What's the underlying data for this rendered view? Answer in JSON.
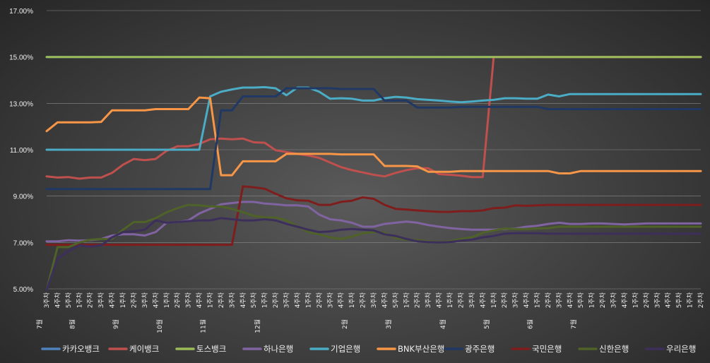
{
  "chart_data": {
    "type": "line",
    "title": "",
    "xlabel": "",
    "ylabel": "",
    "ylim": [
      5,
      17
    ],
    "yticks": [
      "5.00%",
      "7.00%",
      "9.00%",
      "11.00%",
      "13.00%",
      "15.00%",
      "17.00%"
    ],
    "grid": "horizontal",
    "legend_position": "bottom",
    "x": [
      "3주차",
      "4주차",
      "5주차",
      "1주차",
      "2주차",
      "3주차",
      "4주차",
      "1주차",
      "2주차",
      "3주차",
      "4주차",
      "1주차",
      "2주차",
      "3주차",
      "4주차",
      "1주차",
      "2주차",
      "3주차",
      "4주차",
      "5주차",
      "1주차",
      "2주차",
      "3주차",
      "4주차",
      "1주차",
      "2주차",
      "3주차",
      "4주차",
      "1주차",
      "2주차",
      "3주차",
      "4주차",
      "5주차",
      "1주차",
      "2주차",
      "3주차",
      "4주차",
      "1주차",
      "2주차",
      "3주차",
      "4주차",
      "1주차",
      "2주차",
      "3주차",
      "4주차",
      "1주차",
      "2주차",
      "3주차",
      "4주차",
      "5주차",
      "1주차",
      "2주차",
      "3주차",
      "4주차",
      "1주차",
      "2주차",
      "3주차",
      "4주차",
      "5주차",
      "1주차",
      "2주차"
    ],
    "month_labels": [
      {
        "index": 0,
        "label": "7월"
      },
      {
        "index": 3,
        "label": "8월"
      },
      {
        "index": 7,
        "label": "9월"
      },
      {
        "index": 11,
        "label": "10월"
      },
      {
        "index": 15,
        "label": "11월"
      },
      {
        "index": 20,
        "label": "12월"
      },
      {
        "index": 28,
        "label": "2월"
      },
      {
        "index": 32,
        "label": "3월"
      },
      {
        "index": 37,
        "label": "4월"
      },
      {
        "index": 41,
        "label": "5월"
      },
      {
        "index": 45,
        "label": "6월"
      },
      {
        "index": 49,
        "label": "7월"
      }
    ],
    "series": [
      {
        "name": "카카오뱅크",
        "color": "#4f81bd",
        "values": [
          15.0,
          15.0,
          15.0,
          15.0,
          15.0,
          15.0,
          15.0,
          15.0,
          15.0,
          15.0,
          15.0,
          15.0,
          15.0,
          15.0,
          15.0,
          15.0,
          15.0,
          15.0,
          15.0,
          15.0,
          15.0,
          15.0,
          15.0,
          15.0,
          15.0,
          15.0,
          15.0,
          15.0,
          15.0,
          15.0,
          15.0,
          15.0,
          15.0,
          15.0,
          15.0,
          15.0,
          15.0,
          15.0,
          15.0,
          15.0,
          15.0,
          15.0,
          15.0,
          15.0,
          15.0,
          15.0,
          15.0,
          15.0,
          15.0,
          15.0,
          15.0,
          15.0,
          15.0,
          15.0,
          15.0,
          15.0,
          15.0,
          15.0,
          15.0,
          15.0,
          15.0
        ]
      },
      {
        "name": "케이뱅크",
        "color": "#c0504d",
        "values": [
          9.85,
          9.8,
          9.82,
          9.75,
          9.8,
          9.8,
          10.0,
          10.35,
          10.6,
          10.55,
          10.6,
          10.95,
          11.15,
          11.15,
          11.25,
          11.45,
          11.48,
          11.45,
          11.48,
          11.32,
          11.3,
          10.98,
          10.9,
          10.82,
          10.75,
          10.65,
          10.45,
          10.25,
          10.12,
          10.02,
          9.92,
          9.85,
          10.0,
          10.12,
          10.2,
          10.2,
          9.95,
          9.92,
          9.88,
          9.82,
          9.82,
          15.0,
          15.0,
          15.0,
          15.0,
          15.0,
          15.0,
          15.0,
          15.0,
          15.0,
          15.0,
          15.0,
          15.0,
          15.0,
          15.0,
          15.0,
          15.0,
          15.0,
          15.0,
          15.0,
          15.0
        ]
      },
      {
        "name": "토스뱅크",
        "color": "#9bbb59",
        "values": [
          15.0,
          15.0,
          15.0,
          15.0,
          15.0,
          15.0,
          15.0,
          15.0,
          15.0,
          15.0,
          15.0,
          15.0,
          15.0,
          15.0,
          15.0,
          15.0,
          15.0,
          15.0,
          15.0,
          15.0,
          15.0,
          15.0,
          15.0,
          15.0,
          15.0,
          15.0,
          15.0,
          15.0,
          15.0,
          15.0,
          15.0,
          15.0,
          15.0,
          15.0,
          15.0,
          15.0,
          15.0,
          15.0,
          15.0,
          15.0,
          15.0,
          15.0,
          15.0,
          15.0,
          15.0,
          15.0,
          15.0,
          15.0,
          15.0,
          15.0,
          15.0,
          15.0,
          15.0,
          15.0,
          15.0,
          15.0,
          15.0,
          15.0,
          15.0,
          15.0,
          15.0
        ]
      },
      {
        "name": "하나은행",
        "color": "#8064a2",
        "values": [
          7.05,
          7.05,
          7.1,
          7.08,
          7.1,
          7.15,
          7.3,
          7.35,
          7.35,
          7.3,
          7.45,
          7.85,
          7.88,
          7.95,
          8.25,
          8.45,
          8.65,
          8.7,
          8.75,
          8.75,
          8.68,
          8.65,
          8.6,
          8.6,
          8.55,
          8.2,
          8.0,
          7.95,
          7.85,
          7.68,
          7.68,
          7.8,
          7.85,
          7.9,
          7.85,
          7.75,
          7.68,
          7.62,
          7.58,
          7.55,
          7.55,
          7.55,
          7.58,
          7.6,
          7.68,
          7.72,
          7.8,
          7.85,
          7.8,
          7.8,
          7.82,
          7.82,
          7.8,
          7.78,
          7.8,
          7.82,
          7.82,
          7.82,
          7.82,
          7.82,
          7.82
        ]
      },
      {
        "name": "기업은행",
        "color": "#4bacc6",
        "values": [
          11.0,
          11.0,
          11.0,
          11.0,
          11.0,
          11.0,
          11.0,
          11.0,
          11.0,
          11.0,
          11.0,
          11.0,
          11.0,
          11.0,
          11.0,
          13.3,
          13.5,
          13.6,
          13.68,
          13.68,
          13.7,
          13.65,
          13.35,
          13.68,
          13.68,
          13.5,
          13.2,
          13.22,
          13.2,
          13.12,
          13.12,
          13.22,
          13.28,
          13.25,
          13.18,
          13.15,
          13.12,
          13.08,
          13.05,
          13.08,
          13.12,
          13.15,
          13.22,
          13.22,
          13.2,
          13.2,
          13.38,
          13.3,
          13.4,
          13.4,
          13.4,
          13.4,
          13.4,
          13.4,
          13.4,
          13.4,
          13.4,
          13.4,
          13.4,
          13.4,
          13.4
        ]
      },
      {
        "name": "BNK부산은행",
        "color": "#f79646",
        "values": [
          11.8,
          12.18,
          12.18,
          12.18,
          12.18,
          12.2,
          12.7,
          12.7,
          12.7,
          12.7,
          12.75,
          12.75,
          12.75,
          12.75,
          13.25,
          13.22,
          9.9,
          9.9,
          10.5,
          10.5,
          10.5,
          10.5,
          10.82,
          10.82,
          10.82,
          10.82,
          10.82,
          10.8,
          10.8,
          10.8,
          10.8,
          10.3,
          10.3,
          10.3,
          10.28,
          10.05,
          10.05,
          10.05,
          10.08,
          10.08,
          10.08,
          10.08,
          10.08,
          10.08,
          10.08,
          10.08,
          10.08,
          9.98,
          9.98,
          10.08,
          10.08,
          10.08,
          10.08,
          10.08,
          10.08,
          10.08,
          10.08,
          10.08,
          10.08,
          10.08,
          10.08
        ]
      },
      {
        "name": "광주은행",
        "color": "#1f3864",
        "values": [
          9.3,
          9.3,
          9.3,
          9.3,
          9.3,
          9.3,
          9.3,
          9.3,
          9.3,
          9.3,
          9.3,
          9.3,
          9.3,
          9.3,
          9.3,
          9.3,
          12.7,
          12.7,
          13.3,
          13.3,
          13.3,
          13.3,
          13.65,
          13.65,
          13.65,
          13.65,
          13.65,
          13.62,
          13.62,
          13.62,
          13.62,
          13.12,
          13.12,
          13.12,
          12.82,
          12.82,
          12.82,
          12.82,
          12.85,
          12.85,
          12.85,
          12.85,
          12.85,
          12.85,
          12.85,
          12.85,
          12.75,
          12.75,
          12.75,
          12.75,
          12.75,
          12.75,
          12.75,
          12.75,
          12.75,
          12.75,
          12.75,
          12.75,
          12.75,
          12.75,
          12.75
        ]
      },
      {
        "name": "국민은행",
        "color": "#7f1d1d",
        "values": [
          6.9,
          6.9,
          6.9,
          6.9,
          6.9,
          6.9,
          6.9,
          6.9,
          6.9,
          6.9,
          6.9,
          6.9,
          6.9,
          6.9,
          6.9,
          6.9,
          6.9,
          6.9,
          9.42,
          9.38,
          9.32,
          9.1,
          8.9,
          8.82,
          8.8,
          8.62,
          8.62,
          8.75,
          8.8,
          8.95,
          8.88,
          8.62,
          8.45,
          8.42,
          8.38,
          8.35,
          8.32,
          8.32,
          8.35,
          8.35,
          8.38,
          8.48,
          8.5,
          8.6,
          8.58,
          8.6,
          8.62,
          8.62,
          8.62,
          8.62,
          8.62,
          8.62,
          8.62,
          8.62,
          8.62,
          8.62,
          8.62,
          8.62,
          8.62,
          8.62,
          8.62
        ]
      },
      {
        "name": "신한은행",
        "color": "#4f6228",
        "values": [
          4.95,
          6.8,
          6.8,
          7.0,
          7.12,
          7.15,
          7.15,
          7.55,
          7.88,
          7.88,
          8.05,
          8.3,
          8.48,
          8.62,
          8.6,
          8.55,
          8.55,
          8.45,
          8.3,
          8.15,
          8.08,
          8.08,
          7.95,
          7.7,
          7.45,
          7.35,
          7.22,
          7.15,
          7.25,
          7.4,
          7.45,
          7.42,
          7.2,
          7.12,
          7.1,
          7.05,
          7.02,
          7.05,
          7.15,
          7.22,
          7.42,
          7.52,
          7.6,
          7.58,
          7.58,
          7.6,
          7.62,
          7.68,
          7.68,
          7.68,
          7.68,
          7.68,
          7.68,
          7.68,
          7.68,
          7.68,
          7.68,
          7.68,
          7.68,
          7.68,
          7.68
        ]
      },
      {
        "name": "우리은행",
        "color": "#3d2f5b",
        "values": [
          4.95,
          6.3,
          6.62,
          6.88,
          6.82,
          6.88,
          7.22,
          7.45,
          7.48,
          7.55,
          7.95,
          7.85,
          7.88,
          7.92,
          7.95,
          7.95,
          8.05,
          8.0,
          7.95,
          7.95,
          8.0,
          7.95,
          7.8,
          7.68,
          7.55,
          7.45,
          7.48,
          7.55,
          7.58,
          7.55,
          7.52,
          7.35,
          7.28,
          7.15,
          7.05,
          7.02,
          7.0,
          7.02,
          7.08,
          7.12,
          7.22,
          7.28,
          7.38,
          7.4,
          7.4,
          7.4,
          7.38,
          7.38,
          7.38,
          7.38,
          7.38,
          7.38,
          7.38,
          7.38,
          7.38,
          7.38,
          7.38,
          7.38,
          7.38,
          7.38,
          7.38
        ]
      }
    ]
  }
}
